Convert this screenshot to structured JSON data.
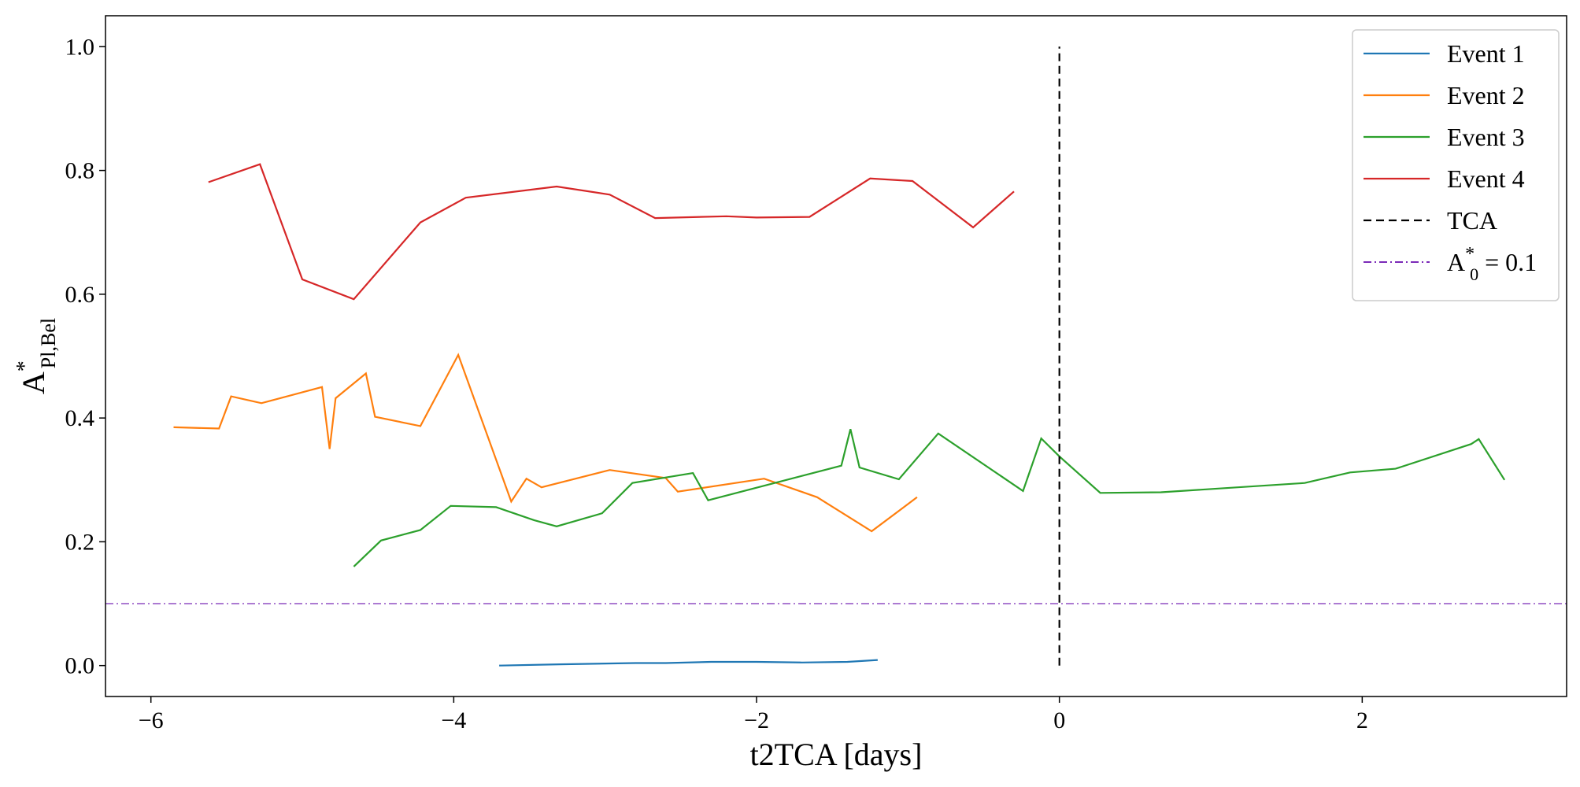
{
  "chart_data": {
    "type": "line",
    "title": "",
    "xlabel": "t2TCA [days]",
    "ylabel": {
      "main": "A",
      "sup": "*",
      "sub": "Pl,Bel"
    },
    "xlim": [
      -6.3,
      3.35
    ],
    "ylim": [
      -0.05,
      1.05
    ],
    "xticks": [
      -6,
      -4,
      -2,
      0,
      2
    ],
    "xtick_labels": [
      "−6",
      "−4",
      "−2",
      "0",
      "2"
    ],
    "yticks": [
      0.0,
      0.2,
      0.4,
      0.6,
      0.8,
      1.0
    ],
    "ytick_labels": [
      "0.0",
      "0.2",
      "0.4",
      "0.6",
      "0.8",
      "1.0"
    ],
    "grid": false,
    "legend_position": "top-right",
    "series": [
      {
        "name": "Event 1",
        "color": "#1f77b4",
        "style": "solid",
        "x": [
          -3.7,
          -3.3,
          -2.8,
          -2.6,
          -2.3,
          -2.0,
          -1.7,
          -1.4,
          -1.2
        ],
        "y": [
          0.0,
          0.002,
          0.004,
          0.004,
          0.006,
          0.006,
          0.005,
          0.006,
          0.009
        ]
      },
      {
        "name": "Event 2",
        "color": "#ff7f0e",
        "style": "solid",
        "x": [
          -5.85,
          -5.55,
          -5.47,
          -5.27,
          -4.87,
          -4.82,
          -4.78,
          -4.58,
          -4.52,
          -4.22,
          -3.97,
          -3.62,
          -3.52,
          -3.42,
          -2.97,
          -2.6,
          -2.52,
          -1.95,
          -1.6,
          -1.24,
          -0.94
        ],
        "y": [
          0.385,
          0.383,
          0.435,
          0.424,
          0.45,
          0.35,
          0.432,
          0.472,
          0.402,
          0.387,
          0.502,
          0.265,
          0.302,
          0.288,
          0.316,
          0.303,
          0.281,
          0.302,
          0.272,
          0.217,
          0.272
        ]
      },
      {
        "name": "Event 3",
        "color": "#2ca02c",
        "style": "solid",
        "x": [
          -4.66,
          -4.48,
          -4.22,
          -4.02,
          -3.72,
          -3.47,
          -3.32,
          -3.02,
          -2.82,
          -2.42,
          -2.32,
          -1.44,
          -1.38,
          -1.32,
          -1.06,
          -0.8,
          -0.24,
          -0.12,
          0.0,
          0.27,
          0.67,
          1.62,
          1.92,
          2.22,
          2.72,
          2.77,
          2.94
        ],
        "y": [
          0.16,
          0.202,
          0.219,
          0.258,
          0.256,
          0.235,
          0.225,
          0.246,
          0.295,
          0.311,
          0.267,
          0.323,
          0.382,
          0.32,
          0.301,
          0.375,
          0.282,
          0.367,
          0.338,
          0.279,
          0.28,
          0.295,
          0.312,
          0.318,
          0.358,
          0.366,
          0.3
        ]
      },
      {
        "name": "Event 4",
        "color": "#d62728",
        "style": "solid",
        "x": [
          -5.62,
          -5.28,
          -5.0,
          -4.66,
          -4.22,
          -3.92,
          -3.32,
          -2.97,
          -2.67,
          -2.2,
          -2.0,
          -1.65,
          -1.25,
          -0.97,
          -0.57,
          -0.3
        ],
        "y": [
          0.781,
          0.81,
          0.624,
          0.592,
          0.716,
          0.756,
          0.774,
          0.761,
          0.723,
          0.726,
          0.724,
          0.725,
          0.787,
          0.783,
          0.708,
          0.766
        ]
      },
      {
        "name": "TCA",
        "color": "#000000",
        "style": "dashed",
        "x": [
          0,
          0
        ],
        "y": [
          0.0,
          1.0
        ]
      },
      {
        "name": "A*0 = 0.1",
        "label": {
          "main": "A",
          "sup": "*",
          "sub": "0",
          "rest": " = 0.1"
        },
        "color": "#7b2ab8",
        "style": "dashdot",
        "x": [
          -6.3,
          3.35
        ],
        "y": [
          0.1,
          0.1
        ]
      }
    ]
  }
}
